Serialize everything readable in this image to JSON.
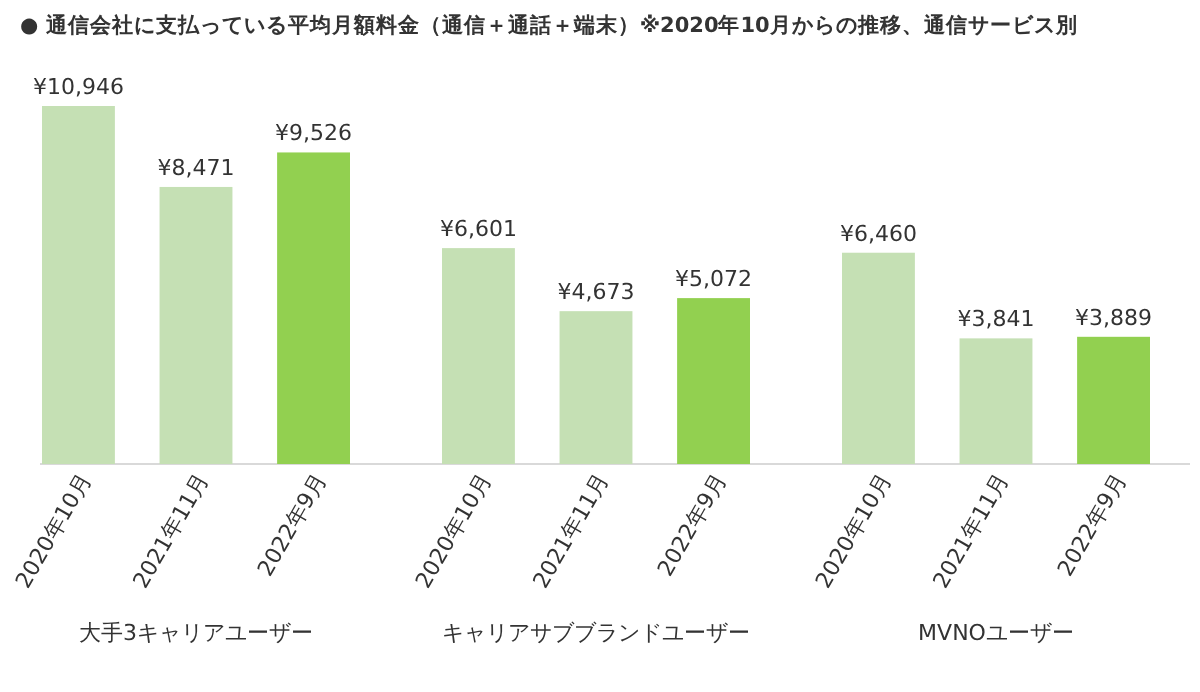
{
  "chart_data": {
    "type": "bar",
    "title": "●  通信会社に支払っている平均月額料金（通信＋通話＋端末）※2020年10月からの推移、通信サービス別",
    "categories": [
      "大手3キャリアユーザー",
      "キャリアサブブランドユーザー",
      "MVNOユーザー"
    ],
    "series": [
      {
        "name": "2020年10月",
        "color": "#c5e0b4",
        "values": [
          10946,
          6601,
          6460
        ],
        "value_labels": [
          "¥10,946",
          "¥6,601",
          "¥6,460"
        ]
      },
      {
        "name": "2021年11月",
        "color": "#c5e0b4",
        "values": [
          8471,
          4673,
          3841
        ],
        "value_labels": [
          "¥8,471",
          "¥4,673",
          "¥3,841"
        ]
      },
      {
        "name": "2022年9月",
        "color": "#92d050",
        "values": [
          9526,
          5072,
          3889
        ],
        "value_labels": [
          "¥9,526",
          "¥5,072",
          "¥3,889"
        ]
      }
    ]
  }
}
